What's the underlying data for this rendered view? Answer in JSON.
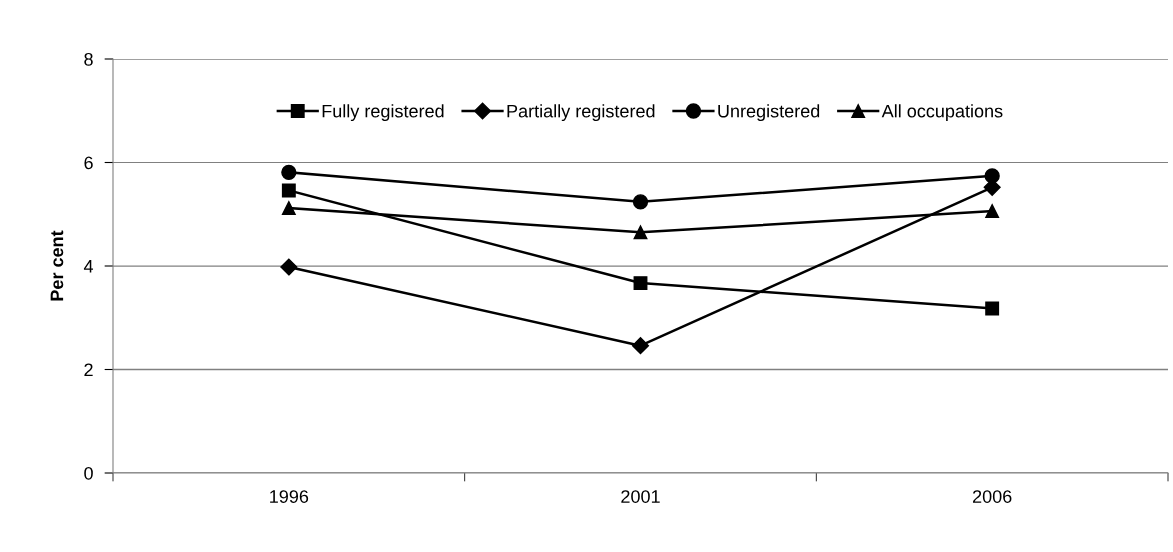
{
  "chart_data": {
    "type": "line",
    "ylabel": "Per cent",
    "categories": [
      "1996",
      "2001",
      "2006"
    ],
    "series": [
      {
        "name": "Fully registered",
        "color": "#000000",
        "marker": "square",
        "values": [
          5.46,
          3.67,
          3.18
        ]
      },
      {
        "name": "Partially registered",
        "color": "#000000",
        "marker": "diamond",
        "values": [
          3.98,
          2.46,
          5.52
        ]
      },
      {
        "name": "Unregistered",
        "color": "#000000",
        "marker": "circle",
        "values": [
          5.81,
          5.24,
          5.74
        ]
      },
      {
        "name": "All occupations",
        "color": "#000000",
        "marker": "triangle",
        "values": [
          5.12,
          4.65,
          5.06
        ]
      }
    ],
    "ylim": [
      0,
      8
    ],
    "yticks": [
      0,
      2,
      4,
      6,
      8
    ],
    "grid": "y",
    "legend": "top",
    "line_style": "solid"
  }
}
